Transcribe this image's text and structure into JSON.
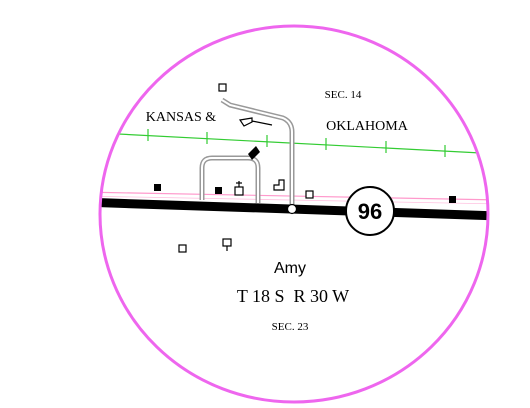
{
  "map": {
    "section_north": "SEC. 14",
    "railroad_name_west": "KANSAS &",
    "railroad_name_east": "OKLAHOMA",
    "highway_number": "96",
    "town_name": "Amy",
    "township_range": "T 18 S  R 30 W",
    "section_south": "SEC. 23"
  },
  "colors": {
    "circle_border": "#ee66ee",
    "railroad": "#33cc33",
    "highway": "#000000",
    "section_line": "#ff99cc",
    "roads": "#999999"
  },
  "icons": [
    "building-icon",
    "church-icon",
    "elevator-icon",
    "cemetery-icon",
    "grain-elevator-icon"
  ]
}
